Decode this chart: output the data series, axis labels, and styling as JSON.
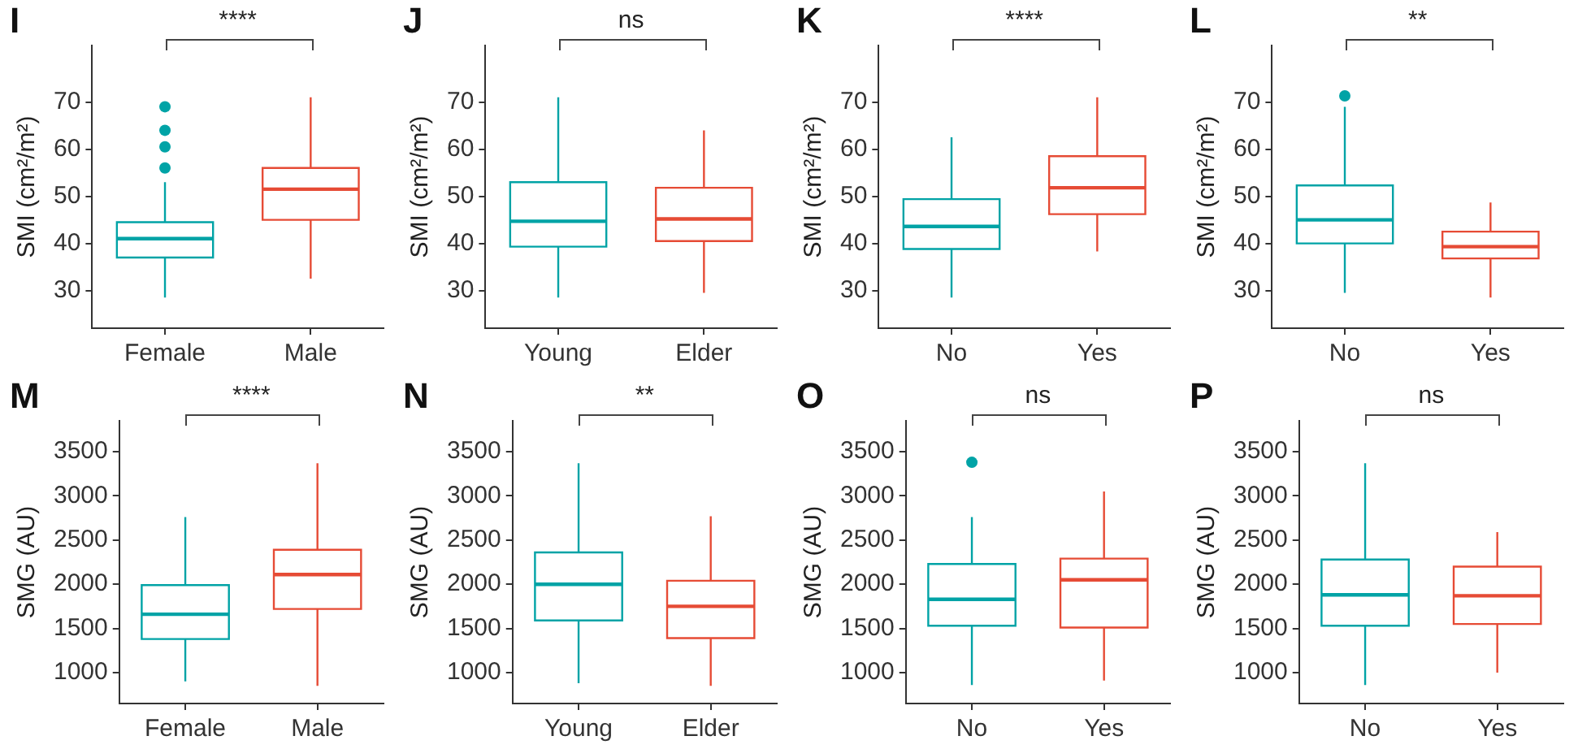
{
  "chart_data": [
    {
      "type": "box",
      "title": "I",
      "ylabel": "SMI (cm²/m²)",
      "categories": [
        "Female",
        "Male"
      ],
      "colors": [
        "#00a3a6",
        "#e64b35"
      ],
      "ylim": [
        22,
        82
      ],
      "yticks": [
        30,
        40,
        50,
        60,
        70
      ],
      "grid": false,
      "annotations": [
        "****"
      ],
      "boxes": [
        {
          "low": 28.5,
          "q1": 37,
          "median": 41,
          "q3": 44.5,
          "high": 53,
          "outliers": [
            56,
            60.5,
            64,
            69
          ]
        },
        {
          "low": 32.5,
          "q1": 45,
          "median": 51.5,
          "q3": 56,
          "high": 71
        }
      ]
    },
    {
      "type": "box",
      "title": "J",
      "ylabel": "SMI (cm²/m²)",
      "categories": [
        "Young",
        "Elder"
      ],
      "colors": [
        "#00a3a6",
        "#e64b35"
      ],
      "ylim": [
        22,
        82
      ],
      "yticks": [
        30,
        40,
        50,
        60,
        70
      ],
      "grid": false,
      "annotations": [
        "ns"
      ],
      "boxes": [
        {
          "low": 28.5,
          "q1": 39.3,
          "median": 44.7,
          "q3": 53,
          "high": 71
        },
        {
          "low": 29.5,
          "q1": 40.5,
          "median": 45.2,
          "q3": 51.8,
          "high": 64
        }
      ]
    },
    {
      "type": "box",
      "title": "K",
      "ylabel": "SMI (cm²/m²)",
      "categories": [
        "No",
        "Yes"
      ],
      "colors": [
        "#00a3a6",
        "#e64b35"
      ],
      "ylim": [
        22,
        82
      ],
      "yticks": [
        30,
        40,
        50,
        60,
        70
      ],
      "grid": false,
      "annotations": [
        "****"
      ],
      "boxes": [
        {
          "low": 28.5,
          "q1": 38.8,
          "median": 43.6,
          "q3": 49.4,
          "high": 62.5
        },
        {
          "low": 38.3,
          "q1": 46.2,
          "median": 51.8,
          "q3": 58.5,
          "high": 71
        }
      ]
    },
    {
      "type": "box",
      "title": "L",
      "ylabel": "SMI (cm²/m²)",
      "categories": [
        "No",
        "Yes"
      ],
      "colors": [
        "#00a3a6",
        "#e64b35"
      ],
      "ylim": [
        22,
        82
      ],
      "yticks": [
        30,
        40,
        50,
        60,
        70
      ],
      "grid": false,
      "annotations": [
        "**"
      ],
      "boxes": [
        {
          "low": 29.5,
          "q1": 40,
          "median": 45,
          "q3": 52.3,
          "high": 69,
          "outliers": [
            71.3
          ]
        },
        {
          "low": 28.5,
          "q1": 36.8,
          "median": 39.3,
          "q3": 42.5,
          "high": 48.7
        }
      ]
    },
    {
      "type": "box",
      "title": "M",
      "ylabel": "SMG (AU)",
      "categories": [
        "Female",
        "Male"
      ],
      "colors": [
        "#00a3a6",
        "#e64b35"
      ],
      "ylim": [
        650,
        3850
      ],
      "yticks": [
        1000,
        1500,
        2000,
        2500,
        3000,
        3500
      ],
      "grid": false,
      "annotations": [
        "****"
      ],
      "boxes": [
        {
          "low": 900,
          "q1": 1380,
          "median": 1660,
          "q3": 1990,
          "high": 2760
        },
        {
          "low": 850,
          "q1": 1720,
          "median": 2110,
          "q3": 2390,
          "high": 3370
        }
      ]
    },
    {
      "type": "box",
      "title": "N",
      "ylabel": "SMG (AU)",
      "categories": [
        "Young",
        "Elder"
      ],
      "colors": [
        "#00a3a6",
        "#e64b35"
      ],
      "ylim": [
        650,
        3850
      ],
      "yticks": [
        1000,
        1500,
        2000,
        2500,
        3000,
        3500
      ],
      "grid": false,
      "annotations": [
        "**"
      ],
      "boxes": [
        {
          "low": 880,
          "q1": 1590,
          "median": 2000,
          "q3": 2360,
          "high": 3370
        },
        {
          "low": 850,
          "q1": 1390,
          "median": 1750,
          "q3": 2040,
          "high": 2770
        }
      ]
    },
    {
      "type": "box",
      "title": "O",
      "ylabel": "SMG (AU)",
      "categories": [
        "No",
        "Yes"
      ],
      "colors": [
        "#00a3a6",
        "#e64b35"
      ],
      "ylim": [
        650,
        3850
      ],
      "yticks": [
        1000,
        1500,
        2000,
        2500,
        3000,
        3500
      ],
      "grid": false,
      "annotations": [
        "ns"
      ],
      "boxes": [
        {
          "low": 860,
          "q1": 1530,
          "median": 1830,
          "q3": 2230,
          "high": 2760,
          "outliers": [
            3380
          ]
        },
        {
          "low": 910,
          "q1": 1510,
          "median": 2050,
          "q3": 2290,
          "high": 3050
        }
      ]
    },
    {
      "type": "box",
      "title": "P",
      "ylabel": "SMG (AU)",
      "categories": [
        "No",
        "Yes"
      ],
      "colors": [
        "#00a3a6",
        "#e64b35"
      ],
      "ylim": [
        650,
        3850
      ],
      "yticks": [
        1000,
        1500,
        2000,
        2500,
        3000,
        3500
      ],
      "grid": false,
      "annotations": [
        "ns"
      ],
      "boxes": [
        {
          "low": 860,
          "q1": 1530,
          "median": 1880,
          "q3": 2280,
          "high": 3370
        },
        {
          "low": 1000,
          "q1": 1550,
          "median": 1870,
          "q3": 2200,
          "high": 2590
        }
      ]
    }
  ]
}
